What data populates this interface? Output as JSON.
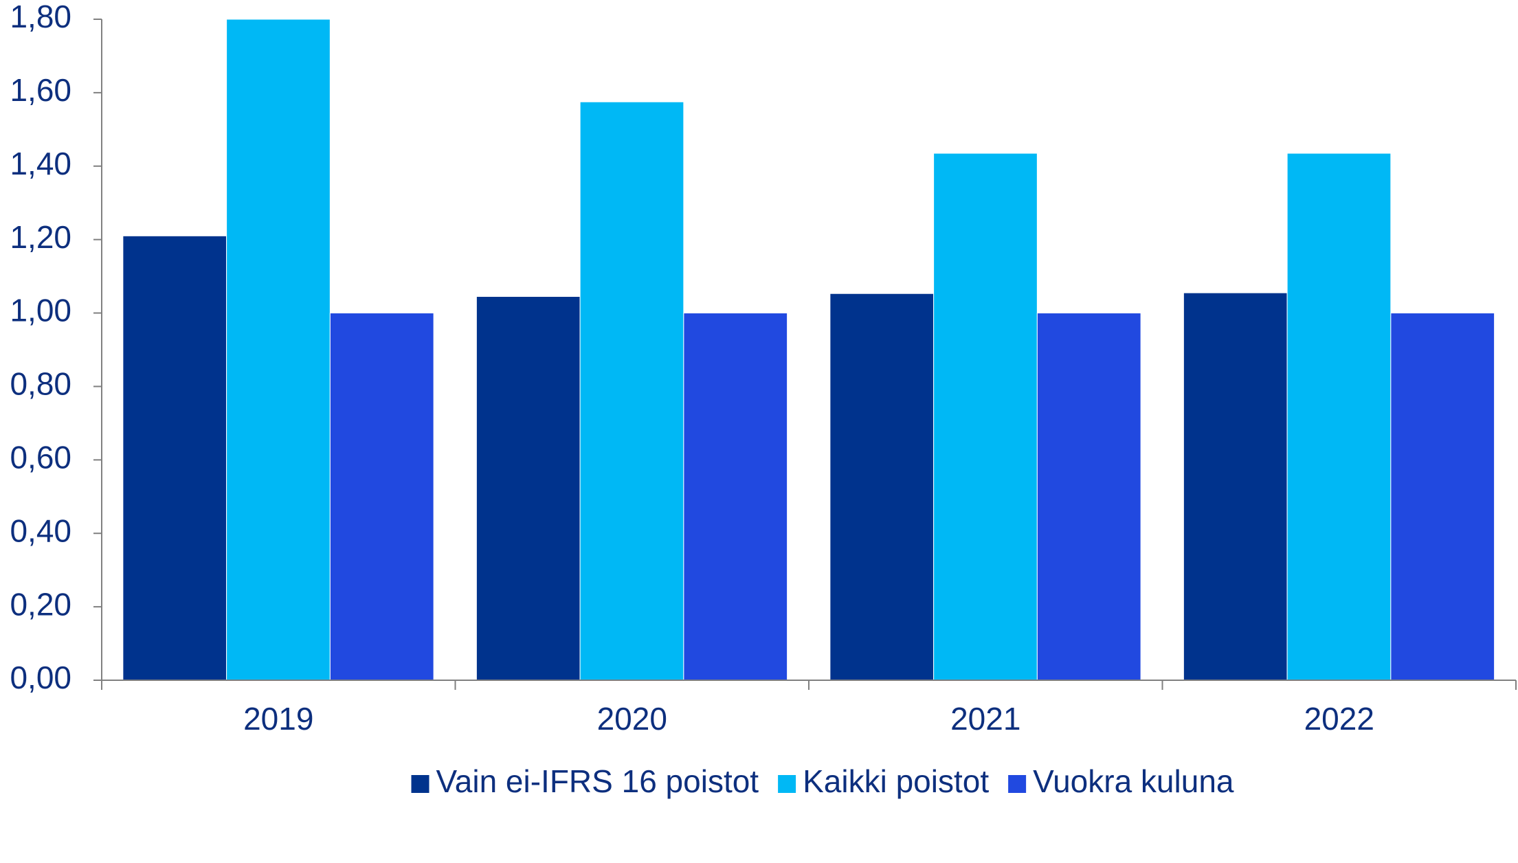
{
  "chart_data": {
    "type": "bar",
    "categories": [
      "2019",
      "2020",
      "2021",
      "2022"
    ],
    "series": [
      {
        "name": "Vain ei-IFRS 16 poistot",
        "color": "#00338d",
        "values": [
          1.21,
          1.045,
          1.053,
          1.055
        ]
      },
      {
        "name": "Kaikki poistot",
        "color": "#00b8f5",
        "values": [
          1.8,
          1.575,
          1.435,
          1.435
        ]
      },
      {
        "name": "Vuokra kuluna",
        "color": "#2149e0",
        "values": [
          1.0,
          1.0,
          1.0,
          1.0
        ]
      }
    ],
    "ylim": [
      0,
      1.8
    ],
    "yticks": [
      {
        "value": 0,
        "label": "0,00"
      },
      {
        "value": 0.2,
        "label": "0,20"
      },
      {
        "value": 0.4,
        "label": "0,40"
      },
      {
        "value": 0.6,
        "label": "0,60"
      },
      {
        "value": 0.8,
        "label": "0,80"
      },
      {
        "value": 1.0,
        "label": "1,00"
      },
      {
        "value": 1.2,
        "label": "1,20"
      },
      {
        "value": 1.4,
        "label": "1,40"
      },
      {
        "value": 1.6,
        "label": "1,60"
      },
      {
        "value": 1.8,
        "label": "1,80"
      }
    ],
    "grid": false,
    "legend": "bottom"
  }
}
